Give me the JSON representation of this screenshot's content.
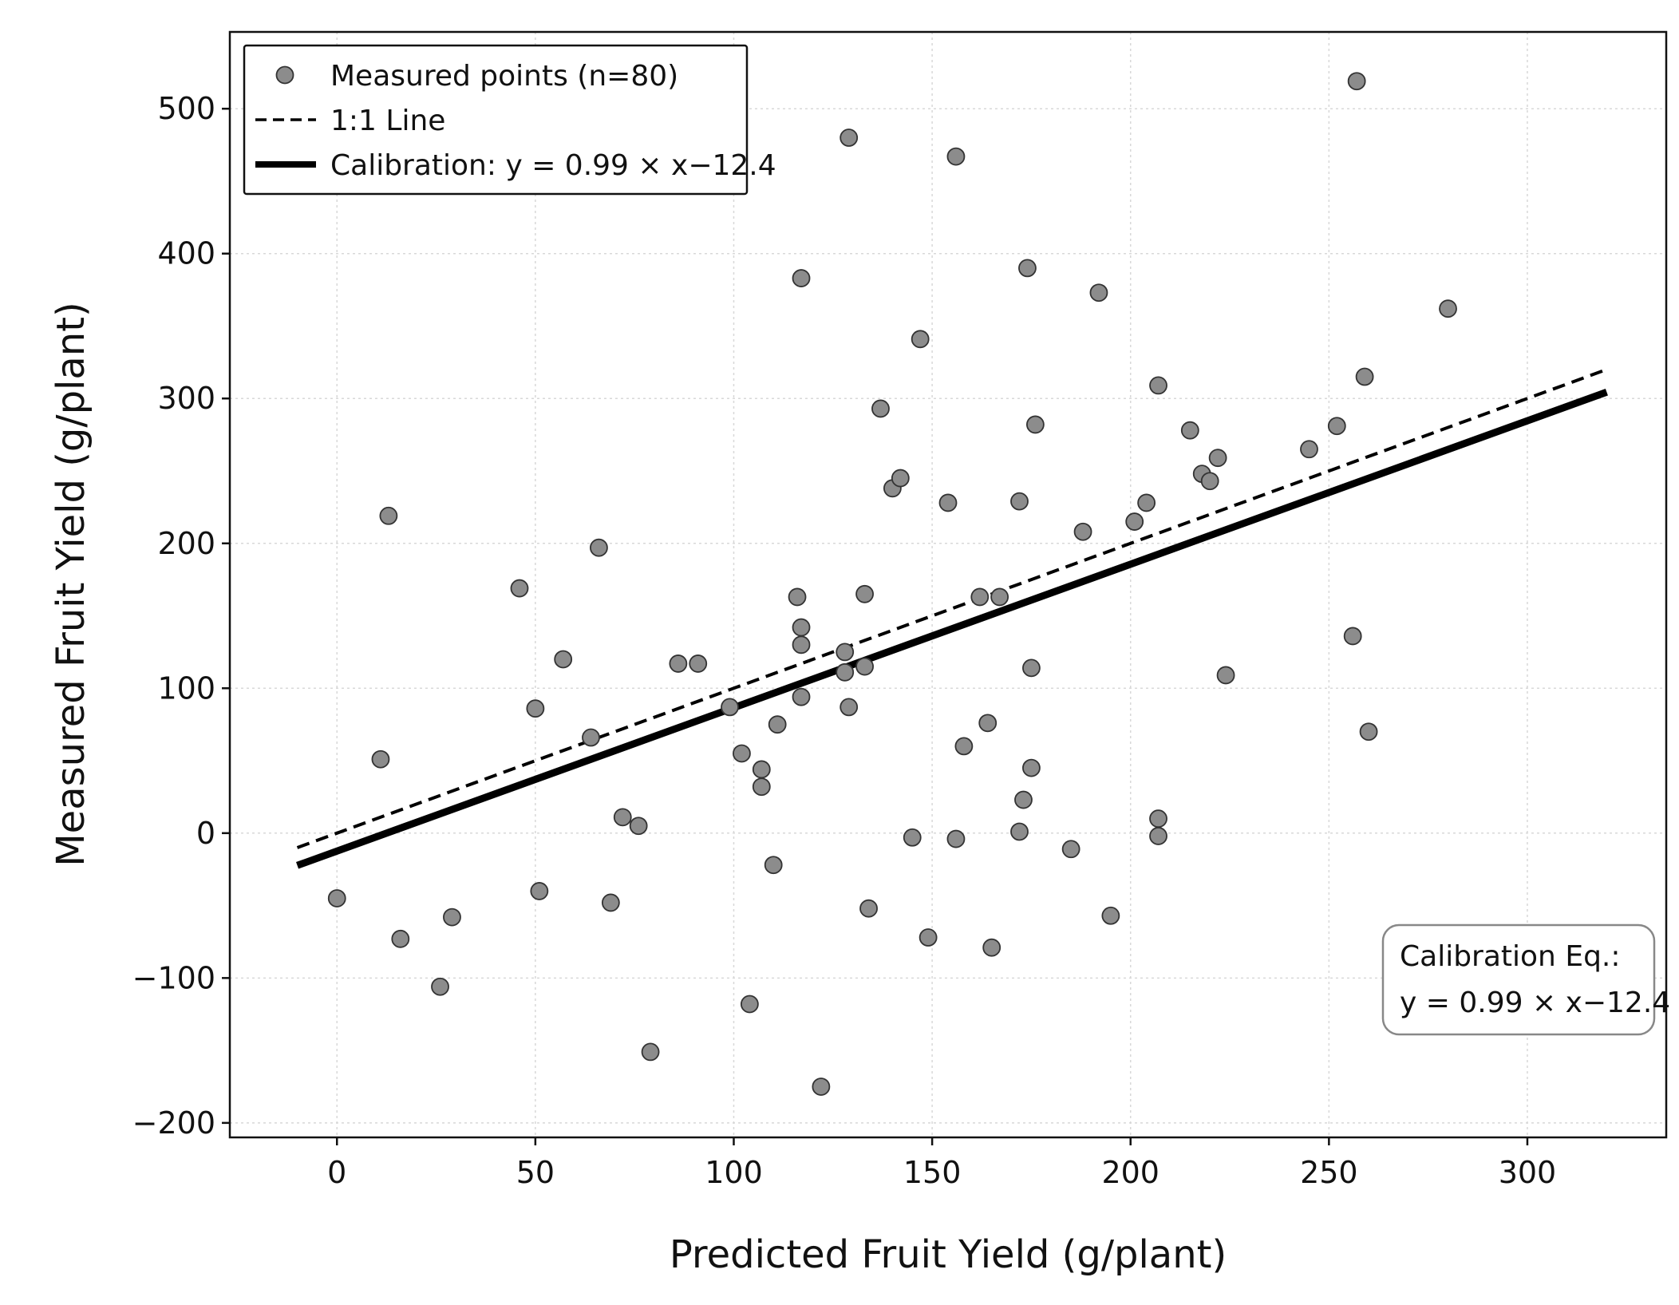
{
  "chart_data": {
    "type": "scatter",
    "xlabel": "Predicted Fruit Yield (g/plant)",
    "ylabel": "Measured Fruit Yield (g/plant)",
    "xlim": [
      -27,
      335
    ],
    "ylim": [
      -210,
      553
    ],
    "x_ticks": [
      0,
      50,
      100,
      150,
      200,
      250,
      300
    ],
    "x_tick_labels": [
      "0",
      "50",
      "100",
      "150",
      "200",
      "250",
      "300"
    ],
    "y_ticks": [
      -200,
      -100,
      0,
      100,
      200,
      300,
      400,
      500
    ],
    "y_tick_labels": [
      "−200",
      "−100",
      "0",
      "100",
      "200",
      "300",
      "400",
      "500"
    ],
    "grid": true,
    "legend_position": "top-left",
    "legend": {
      "points": "Measured points (n=80)",
      "identity": "1:1 Line",
      "calibration": "Calibration: y = 0.99 × x−12.4"
    },
    "annotation": {
      "line1": "Calibration Eq.:",
      "line2": "y = 0.99 × x−12.4",
      "position": "bottom-right"
    },
    "identity_line": {
      "x": [
        -10,
        320
      ],
      "y": [
        -10,
        320
      ]
    },
    "calibration_line": {
      "slope": 0.99,
      "intercept": -12.4,
      "x": [
        -10,
        320
      ]
    },
    "colors": {
      "points": "#8c8c8c",
      "point_edge": "#333333",
      "lines": "#000000",
      "grid": "#d8d8d8"
    },
    "points": [
      {
        "x": 0,
        "y": -45
      },
      {
        "x": 11,
        "y": 51
      },
      {
        "x": 13,
        "y": 219
      },
      {
        "x": 16,
        "y": -73
      },
      {
        "x": 26,
        "y": -106
      },
      {
        "x": 29,
        "y": -58
      },
      {
        "x": 46,
        "y": 169
      },
      {
        "x": 50,
        "y": 86
      },
      {
        "x": 51,
        "y": -40
      },
      {
        "x": 57,
        "y": 120
      },
      {
        "x": 64,
        "y": 66
      },
      {
        "x": 66,
        "y": 197
      },
      {
        "x": 69,
        "y": -48
      },
      {
        "x": 72,
        "y": 11
      },
      {
        "x": 76,
        "y": 5
      },
      {
        "x": 79,
        "y": -151
      },
      {
        "x": 86,
        "y": 117
      },
      {
        "x": 91,
        "y": 117
      },
      {
        "x": 99,
        "y": 87
      },
      {
        "x": 102,
        "y": 55
      },
      {
        "x": 104,
        "y": -118
      },
      {
        "x": 107,
        "y": 44
      },
      {
        "x": 107,
        "y": 32
      },
      {
        "x": 110,
        "y": -22
      },
      {
        "x": 111,
        "y": 75
      },
      {
        "x": 116,
        "y": 163
      },
      {
        "x": 117,
        "y": 383
      },
      {
        "x": 117,
        "y": 142
      },
      {
        "x": 117,
        "y": 130
      },
      {
        "x": 117,
        "y": 94
      },
      {
        "x": 122,
        "y": -175
      },
      {
        "x": 128,
        "y": 125
      },
      {
        "x": 128,
        "y": 111
      },
      {
        "x": 129,
        "y": 480
      },
      {
        "x": 129,
        "y": 87
      },
      {
        "x": 133,
        "y": 165
      },
      {
        "x": 133,
        "y": 115
      },
      {
        "x": 134,
        "y": -52
      },
      {
        "x": 137,
        "y": 293
      },
      {
        "x": 140,
        "y": 238
      },
      {
        "x": 142,
        "y": 245
      },
      {
        "x": 145,
        "y": -3
      },
      {
        "x": 147,
        "y": 341
      },
      {
        "x": 149,
        "y": -72
      },
      {
        "x": 154,
        "y": 228
      },
      {
        "x": 156,
        "y": 467
      },
      {
        "x": 156,
        "y": -4
      },
      {
        "x": 158,
        "y": 60
      },
      {
        "x": 162,
        "y": 163
      },
      {
        "x": 164,
        "y": 76
      },
      {
        "x": 165,
        "y": -79
      },
      {
        "x": 167,
        "y": 163
      },
      {
        "x": 172,
        "y": 229
      },
      {
        "x": 172,
        "y": 1
      },
      {
        "x": 173,
        "y": 23
      },
      {
        "x": 174,
        "y": 390
      },
      {
        "x": 175,
        "y": 114
      },
      {
        "x": 175,
        "y": 45
      },
      {
        "x": 176,
        "y": 282
      },
      {
        "x": 185,
        "y": -11
      },
      {
        "x": 188,
        "y": 208
      },
      {
        "x": 192,
        "y": 373
      },
      {
        "x": 195,
        "y": -57
      },
      {
        "x": 201,
        "y": 215
      },
      {
        "x": 204,
        "y": 228
      },
      {
        "x": 207,
        "y": 309
      },
      {
        "x": 207,
        "y": 10
      },
      {
        "x": 207,
        "y": -2
      },
      {
        "x": 215,
        "y": 278
      },
      {
        "x": 218,
        "y": 248
      },
      {
        "x": 220,
        "y": 243
      },
      {
        "x": 222,
        "y": 259
      },
      {
        "x": 224,
        "y": 109
      },
      {
        "x": 245,
        "y": 265
      },
      {
        "x": 252,
        "y": 281
      },
      {
        "x": 256,
        "y": 136
      },
      {
        "x": 257,
        "y": 519
      },
      {
        "x": 259,
        "y": 315
      },
      {
        "x": 260,
        "y": 70
      },
      {
        "x": 280,
        "y": 362
      }
    ]
  }
}
